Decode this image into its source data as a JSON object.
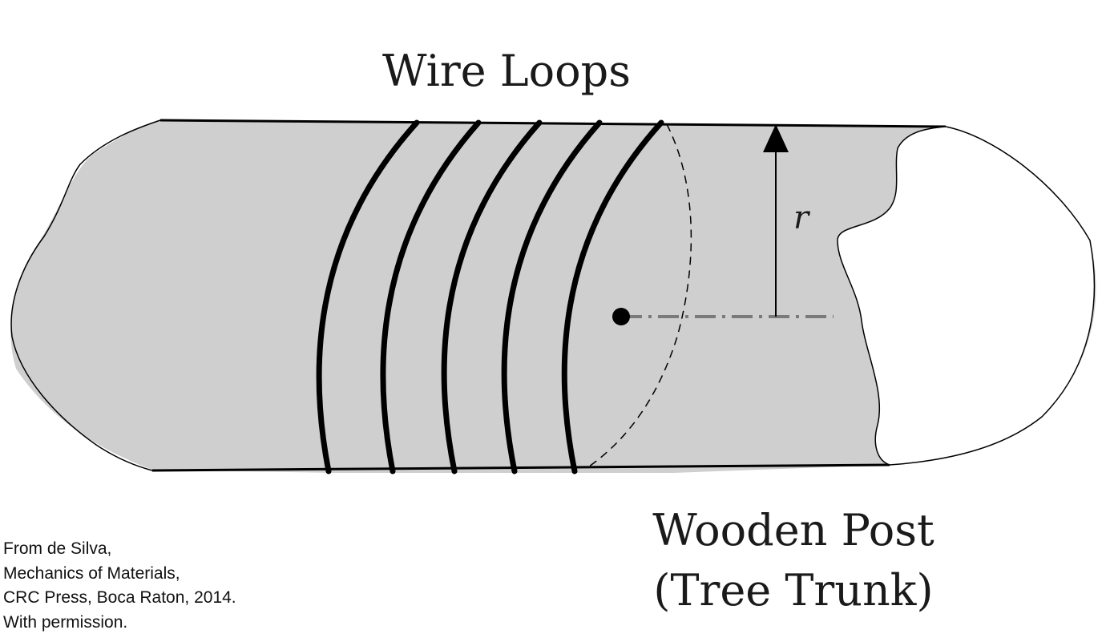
{
  "labels": {
    "wire_loops": "Wire Loops",
    "radius_symbol": "r",
    "wooden_post_line1": "Wooden Post",
    "wooden_post_line2": "(Tree Trunk)"
  },
  "credit": {
    "line1": "From de Silva,",
    "line2": "Mechanics of Materials,",
    "line3": "CRC Press, Boca Raton, 2014.",
    "line4": "With permission."
  },
  "colors": {
    "post_fill": "#cfcfcf",
    "outline": "#000000",
    "loop": "#000000",
    "axis_line": "#7a7a7a",
    "cut_face": "#ffffff"
  }
}
